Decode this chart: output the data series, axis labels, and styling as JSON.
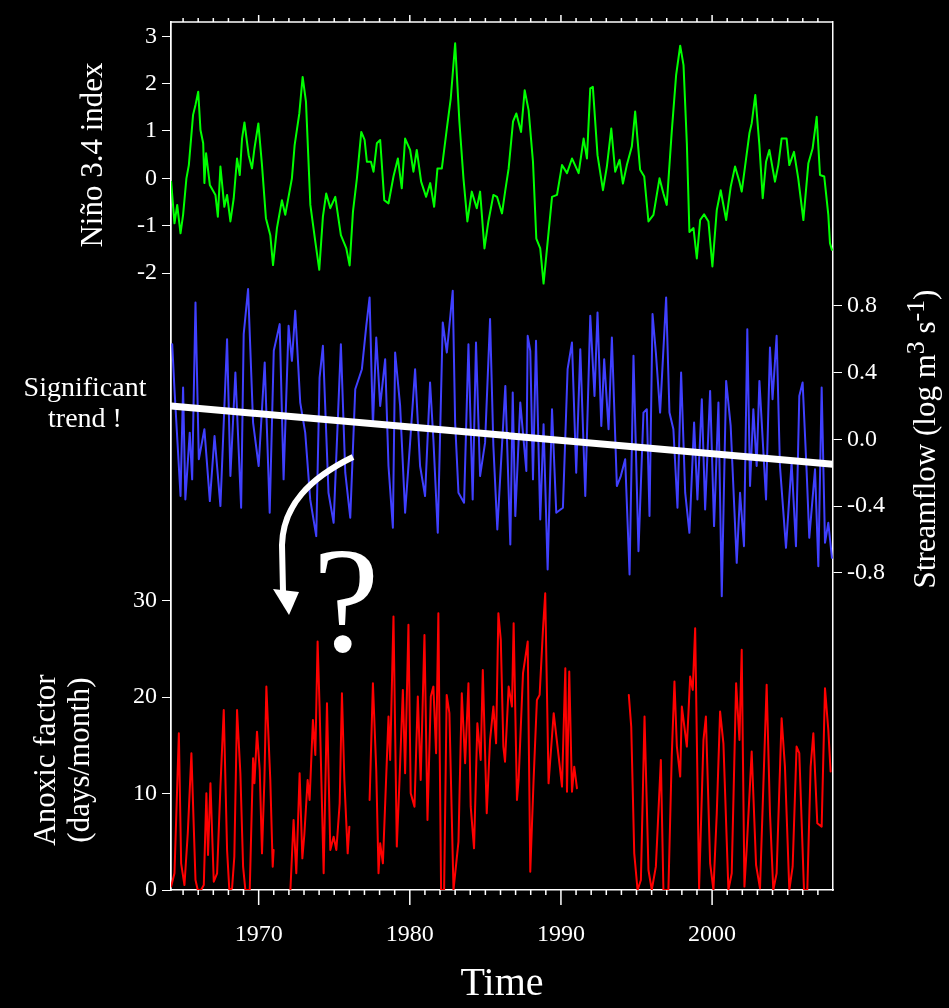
{
  "chart_data": {
    "type": "line",
    "xlabel": "Time",
    "ylabel": "Niño 3.4 index",
    "y2label": "Streamflow (log m$^{3}$ s$^{-1}$)",
    "y3label": "Anoxic factor (days/month)",
    "marker": "none",
    "xlim": [
      1964.2,
      2008.0
    ],
    "xticks": [
      {
        "value": 1965,
        "label": null
      },
      {
        "value": 1966,
        "label": null
      },
      {
        "value": 1967,
        "label": null
      },
      {
        "value": 1968,
        "label": null
      },
      {
        "value": 1969,
        "label": null
      },
      1970,
      {
        "value": 1971,
        "label": null
      },
      {
        "value": 1972,
        "label": null
      },
      {
        "value": 1973,
        "label": null
      },
      {
        "value": 1974,
        "label": null
      },
      {
        "value": 1975,
        "label": null
      },
      {
        "value": 1976,
        "label": null
      },
      {
        "value": 1977,
        "label": null
      },
      {
        "value": 1978,
        "label": null
      },
      {
        "value": 1979,
        "label": null
      },
      1980,
      {
        "value": 1981,
        "label": null
      },
      {
        "value": 1982,
        "label": null
      },
      {
        "value": 1983,
        "label": null
      },
      {
        "value": 1984,
        "label": null
      },
      {
        "value": 1985,
        "label": null
      },
      {
        "value": 1986,
        "label": null
      },
      {
        "value": 1987,
        "label": null
      },
      {
        "value": 1988,
        "label": null
      },
      {
        "value": 1989,
        "label": null
      },
      1990,
      {
        "value": 1991,
        "label": null
      },
      {
        "value": 1992,
        "label": null
      },
      {
        "value": 1993,
        "label": null
      },
      {
        "value": 1994,
        "label": null
      },
      {
        "value": 1995,
        "label": null
      },
      {
        "value": 1996,
        "label": null
      },
      {
        "value": 1997,
        "label": null
      },
      {
        "value": 1998,
        "label": null
      },
      {
        "value": 1999,
        "label": null
      },
      2000,
      {
        "value": 2001,
        "label": null
      },
      {
        "value": 2002,
        "label": null
      },
      {
        "value": 2003,
        "label": null
      },
      {
        "value": 2004,
        "label": null
      },
      {
        "value": 2005,
        "label": null
      },
      {
        "value": 2006,
        "label": null
      },
      {
        "value": 2007,
        "label": null
      }
    ],
    "ylim": [
      -15.02,
      3.3
    ],
    "yticks": [
      -2,
      -1,
      0,
      1,
      2,
      3
    ],
    "y2lim": [
      -2.7,
      2.5
    ],
    "y2ticks": [
      -0.8,
      -0.4,
      {
        "value": 0,
        "label": "0.0"
      },
      0.4,
      0.8
    ],
    "y3lim": [
      0,
      90
    ],
    "y3ticks": [
      0,
      10,
      20,
      30
    ],
    "annotations": [
      "Significant trend !",
      "?"
    ],
    "series": [
      {
        "color": "#00ff00",
        "x": [
          1964.21,
          1964.43,
          1964.61,
          1964.83,
          1965.0,
          1965.22,
          1965.38,
          1965.66,
          1965.82,
          1966.0,
          1966.15,
          1966.33,
          1966.41,
          1966.52,
          1966.77,
          1967.14,
          1967.3,
          1967.47,
          1967.73,
          1967.91,
          1968.13,
          1968.35,
          1968.57,
          1968.75,
          1968.9,
          1969.06,
          1969.34,
          1969.56,
          1969.72,
          1969.98,
          1970.22,
          1970.48,
          1970.77,
          1970.95,
          1971.21,
          1971.54,
          1971.76,
          1972.2,
          1972.38,
          1972.69,
          1972.91,
          1973.13,
          1973.42,
          1973.75,
          1974.01,
          1974.25,
          1974.47,
          1974.74,
          1975.07,
          1975.44,
          1975.8,
          1976.02,
          1976.24,
          1976.5,
          1976.79,
          1977.01,
          1977.16,
          1977.43,
          1977.6,
          1977.82,
          1978.04,
          1978.31,
          1978.59,
          1978.92,
          1979.21,
          1979.47,
          1979.69,
          1980.02,
          1980.24,
          1980.46,
          1980.75,
          1981.08,
          1981.35,
          1981.61,
          1981.83,
          1982.12,
          1982.45,
          1982.71,
          1983.0,
          1983.28,
          1983.55,
          1983.81,
          1984.1,
          1984.43,
          1984.65,
          1984.94,
          1985.2,
          1985.53,
          1985.77,
          1986.1,
          1986.32,
          1986.54,
          1986.83,
          1987.05,
          1987.36,
          1987.6,
          1987.86,
          1988.15,
          1988.37,
          1988.63,
          1988.85,
          1989.12,
          1989.41,
          1989.74,
          1990.07,
          1990.4,
          1990.73,
          1991.17,
          1991.5,
          1991.72,
          1991.94,
          1992.11,
          1992.42,
          1992.78,
          1993.04,
          1993.33,
          1993.59,
          1993.88,
          1994.1,
          1994.36,
          1994.69,
          1994.91,
          1995.24,
          1995.51,
          1995.79,
          1996.12,
          1996.52,
          1996.78,
          1997.0,
          1997.33,
          1997.62,
          1997.89,
          1998.11,
          1998.33,
          1998.5,
          1998.77,
          1998.99,
          1999.21,
          1999.47,
          1999.76,
          2000.02,
          2000.31,
          2000.57,
          2000.93,
          2001.23,
          2001.52,
          2001.81,
          2001.96,
          2002.18,
          2002.47,
          2002.62,
          2002.86,
          2003.13,
          2003.35,
          2003.57,
          2003.79,
          2004.16,
          2004.38,
          2004.6,
          2004.93,
          2005.11,
          2005.42,
          2005.7,
          2006.04,
          2006.37,
          2006.65,
          2006.92,
          2007.14,
          2007.42,
          2007.69,
          2007.8,
          2007.93
        ],
        "values": [
          -0.07,
          -0.95,
          -0.56,
          -1.16,
          -0.77,
          0.0,
          0.28,
          1.34,
          1.55,
          1.83,
          1.02,
          0.74,
          -0.1,
          0.53,
          -0.14,
          -0.35,
          -0.81,
          0.25,
          -0.6,
          -0.35,
          -0.91,
          -0.42,
          0.42,
          0.07,
          0.84,
          1.18,
          0.49,
          0.21,
          0.63,
          1.16,
          0.28,
          -0.84,
          -1.2,
          -1.83,
          -1.05,
          -0.46,
          -0.77,
          0.0,
          0.7,
          1.37,
          2.14,
          1.62,
          -0.56,
          -1.34,
          -1.93,
          -0.81,
          -0.32,
          -0.63,
          -0.39,
          -1.2,
          -1.48,
          -1.84,
          -0.7,
          0.0,
          0.98,
          0.81,
          0.35,
          0.35,
          0.14,
          0.74,
          0.81,
          -0.46,
          -0.53,
          0.04,
          0.42,
          -0.21,
          0.84,
          0.6,
          0.14,
          0.6,
          -0.07,
          -0.39,
          -0.1,
          -0.6,
          0.21,
          0.21,
          1.05,
          1.69,
          2.85,
          1.2,
          0.0,
          -0.91,
          -0.28,
          -0.63,
          -0.28,
          -1.48,
          -0.91,
          -0.35,
          -0.39,
          -0.74,
          -0.25,
          0.21,
          1.2,
          1.37,
          0.98,
          1.86,
          1.44,
          0.35,
          -1.27,
          -1.48,
          -2.22,
          -1.34,
          -0.39,
          -0.35,
          0.28,
          0.11,
          0.42,
          0.11,
          0.84,
          0.42,
          1.9,
          1.93,
          0.49,
          -0.25,
          0.25,
          1.05,
          0.14,
          0.39,
          -0.11,
          0.28,
          0.67,
          1.41,
          0.18,
          0.04,
          -0.91,
          -0.77,
          0.0,
          -0.32,
          -0.56,
          0.98,
          2.18,
          2.8,
          2.39,
          0.74,
          -1.13,
          -1.05,
          -1.69,
          -0.88,
          -0.76,
          -0.91,
          -1.86,
          -0.67,
          -0.25,
          -0.88,
          -0.18,
          0.25,
          -0.07,
          -0.28,
          0.25,
          0.95,
          1.16,
          1.76,
          0.7,
          -0.42,
          0.35,
          0.6,
          -0.07,
          0.28,
          0.84,
          0.84,
          0.28,
          0.56,
          0.0,
          -0.88,
          0.32,
          0.63,
          1.3,
          0.07,
          0.04,
          -0.77,
          -1.37,
          -1.51
        ]
      },
      {
        "color": "#4040ff",
        "axis": "y2",
        "x": [
          1964.28,
          1964.43,
          1964.83,
          1965.0,
          1965.15,
          1965.44,
          1965.6,
          1965.82,
          1966.04,
          1966.41,
          1966.77,
          1967.08,
          1967.47,
          1967.91,
          1968.13,
          1968.46,
          1968.84,
          1969.01,
          1969.3,
          1969.63,
          1970.0,
          1970.4,
          1970.73,
          1971.0,
          1971.39,
          1971.65,
          1971.98,
          1972.2,
          1972.42,
          1972.75,
          1973.08,
          1973.41,
          1973.81,
          1974.03,
          1974.25,
          1974.62,
          1974.96,
          1975.44,
          1975.73,
          1976.06,
          1976.39,
          1976.83,
          1977.12,
          1977.34,
          1977.56,
          1977.78,
          1978.04,
          1978.37,
          1978.59,
          1978.88,
          1979.03,
          1979.36,
          1979.69,
          1980.02,
          1980.35,
          1980.68,
          1981.01,
          1981.34,
          1981.56,
          1981.85,
          1982.18,
          1982.45,
          1982.84,
          1983.0,
          1983.22,
          1983.59,
          1983.88,
          1984.16,
          1984.38,
          1984.65,
          1984.98,
          1985.31,
          1985.53,
          1985.79,
          1986.32,
          1986.65,
          1986.81,
          1986.98,
          1987.31,
          1987.71,
          1987.8,
          1987.97,
          1988.15,
          1988.35,
          1988.63,
          1988.85,
          1989.12,
          1989.41,
          1989.69,
          1990.13,
          1990.44,
          1990.73,
          1991.01,
          1991.28,
          1991.61,
          1991.94,
          1992.22,
          1992.42,
          1992.67,
          1992.86,
          1993.15,
          1993.37,
          1993.7,
          1993.96,
          1994.25,
          1994.54,
          1994.8,
          1995.13,
          1995.46,
          1995.68,
          1995.86,
          1996.06,
          1996.28,
          1996.56,
          1996.96,
          1997.18,
          1997.44,
          1997.71,
          1997.95,
          1998.22,
          1998.5,
          1998.81,
          1999.03,
          1999.32,
          1999.54,
          1999.87,
          2000.13,
          2000.42,
          2000.64,
          2000.93,
          2001.23,
          2001.63,
          2001.85,
          2002.11,
          2002.33,
          2002.51,
          2002.73,
          2002.95,
          2003.13,
          2003.57,
          2003.83,
          2004.0,
          2004.27,
          2004.49,
          2004.89,
          2005.26,
          2005.55,
          2005.77,
          2005.99,
          2006.26,
          2006.43,
          2006.81,
          2007.03,
          2007.25,
          2007.47,
          2007.69,
          2007.93
        ],
        "values": [
          0.57,
          0.3,
          -0.34,
          0.31,
          -0.36,
          0.04,
          -0.24,
          0.82,
          -0.12,
          0.06,
          -0.37,
          0.02,
          -0.4,
          0.6,
          -0.22,
          0.4,
          -0.41,
          0.63,
          0.9,
          0.1,
          -0.16,
          0.46,
          -0.44,
          0.53,
          0.69,
          -0.24,
          0.68,
          0.47,
          0.77,
          0.22,
          0.04,
          -0.36,
          -0.58,
          0.37,
          0.56,
          -0.32,
          -0.5,
          0.57,
          -0.2,
          -0.47,
          0.3,
          0.42,
          0.68,
          0.85,
          0.08,
          0.61,
          0.2,
          0.48,
          -0.16,
          -0.53,
          0.52,
          0.2,
          -0.44,
          -0.02,
          0.42,
          -0.16,
          -0.34,
          0.34,
          0.0,
          -0.56,
          0.7,
          0.52,
          0.89,
          0.1,
          -0.32,
          -0.38,
          0.57,
          -0.36,
          0.58,
          -0.22,
          -0.02,
          0.72,
          -0.04,
          -0.54,
          0.32,
          -0.63,
          0.28,
          -0.46,
          0.22,
          -0.19,
          0.62,
          0.53,
          -0.24,
          0.59,
          -0.48,
          0.09,
          -0.78,
          0.18,
          -0.44,
          -0.41,
          0.42,
          0.58,
          -0.2,
          0.54,
          -0.34,
          0.74,
          0.26,
          0.76,
          0.08,
          0.48,
          0.06,
          0.61,
          -0.28,
          -0.22,
          -0.12,
          -0.81,
          0.5,
          -0.67,
          0.16,
          0.18,
          -0.46,
          0.75,
          0.52,
          0.16,
          0.85,
          0.16,
          0.06,
          -0.41,
          0.4,
          -0.32,
          -0.56,
          0.1,
          -0.36,
          0.24,
          -0.42,
          0.29,
          -0.52,
          0.22,
          -0.94,
          0.35,
          0.08,
          -0.74,
          -0.32,
          -0.64,
          0.66,
          -0.28,
          0.18,
          -0.16,
          0.35,
          -0.36,
          0.55,
          0.24,
          0.62,
          -0.16,
          -0.65,
          -0.14,
          -0.64,
          0.26,
          0.34,
          -0.2,
          -0.59,
          -0.18,
          -0.76,
          0.31,
          -0.62,
          -0.5,
          -0.71
        ]
      },
      {
        "color": "#ffffff",
        "axis": "y2",
        "x": [
          1964.2,
          2008.0
        ],
        "values": [
          0.2,
          -0.15
        ]
      },
      {
        "color": "#ff0000",
        "axis": "y3",
        "x": [
          1964.21,
          1964.43,
          1964.72,
          1964.87,
          1965.09,
          1965.31,
          1965.55,
          1965.82,
          1965.97,
          1966.19,
          1966.37,
          1966.54,
          1966.65,
          1966.81,
          1967.03,
          1967.25,
          1967.47,
          1967.69,
          1967.91,
          1968.06,
          1968.24,
          1968.39,
          1968.57,
          1968.79,
          1968.97,
          1969.12,
          1969.41,
          1969.63,
          1969.72,
          1969.89,
          1970.07,
          1970.22,
          1970.38,
          1970.51,
          1970.77,
          1970.93,
          1970.99,
          1971.5,
          1972.1,
          1972.31,
          1972.49,
          1972.71,
          1972.89,
          1973.02,
          1973.24,
          1973.37,
          1973.59,
          1973.75,
          1973.9,
          1974.03,
          1974.3,
          1974.52,
          1974.74,
          1974.96,
          1975.14,
          1975.36,
          1975.51,
          1975.67,
          1975.89,
          1976.0,
          1976.6,
          1977.34,
          1977.56,
          1977.78,
          1977.93,
          1978.04,
          1978.22,
          1978.59,
          1978.7,
          1978.92,
          1979.14,
          1979.32,
          1979.54,
          1979.69,
          1979.91,
          1980.06,
          1980.31,
          1980.53,
          1980.72,
          1980.97,
          1981.17,
          1981.39,
          1981.56,
          1981.74,
          1981.89,
          1982.07,
          1982.27,
          1982.44,
          1982.62,
          1982.89,
          1983.22,
          1983.44,
          1983.66,
          1983.88,
          1984.03,
          1984.25,
          1984.47,
          1984.69,
          1984.83,
          1985.09,
          1985.31,
          1985.53,
          1985.71,
          1985.86,
          1986.02,
          1986.19,
          1986.3,
          1986.54,
          1986.76,
          1986.87,
          1987.09,
          1987.2,
          1987.49,
          1987.8,
          1987.97,
          1988.19,
          1988.41,
          1988.59,
          1988.81,
          1988.96,
          1989.18,
          1989.52,
          1989.85,
          1990.07,
          1990.29,
          1990.4,
          1990.55,
          1990.73,
          1990.88,
          1991.06,
          1993.0,
          1994.49,
          1994.65,
          1994.85,
          1995.07,
          1995.29,
          1995.53,
          1995.79,
          1996.01,
          1996.28,
          1996.61,
          1996.78,
          1997.11,
          1997.33,
          1997.51,
          1997.67,
          1997.89,
          1998.0,
          1998.33,
          1998.55,
          1998.72,
          1998.88,
          1999.14,
          1999.43,
          1999.59,
          1999.87,
          2000.09,
          2000.31,
          2000.53,
          2000.75,
          2001.08,
          2001.3,
          2001.59,
          2001.81,
          2001.96,
          2002.14,
          2002.29,
          2002.62,
          2002.91,
          2003.17,
          2003.39,
          2003.61,
          2003.83,
          2004.05,
          2004.27,
          2004.6,
          2004.82,
          2005.11,
          2005.33,
          2005.59,
          2005.77,
          2006.08,
          2006.3,
          2006.52,
          2006.7,
          2006.96,
          2007.25,
          2007.47,
          2007.69,
          2007.84
        ],
        "values": [
          0.35,
          1.73,
          16.25,
          2.77,
          0.52,
          5.88,
          14.18,
          1.04,
          0,
          0,
          0.52,
          10.03,
          3.63,
          11.07,
          0.86,
          1.73,
          10.72,
          18.67,
          4.15,
          0,
          0.17,
          3.46,
          18.67,
          12.1,
          2.42,
          0,
          0,
          13.66,
          11.07,
          16.42,
          12.45,
          3.8,
          11.41,
          21.09,
          11.41,
          2.42,
          4.15,
          null,
          0,
          7.26,
          1.73,
          12.1,
          3.28,
          5.7,
          11.41,
          9.34,
          17.63,
          14.0,
          25.76,
          19.02,
          1.73,
          19.36,
          4.15,
          5.53,
          4.15,
          8.99,
          20.4,
          11.41,
          3.8,
          6.57,
          null,
          9.34,
          21.44,
          12.45,
          1.73,
          4.84,
          2.77,
          17.98,
          13.49,
          28.35,
          4.5,
          11.41,
          20.75,
          12.1,
          27.49,
          10.03,
          8.64,
          20.06,
          11.41,
          26.45,
          7.26,
          20.06,
          21.09,
          14.18,
          28.7,
          0,
          0,
          20.23,
          18.33,
          0,
          5.01,
          20.4,
          13.14,
          21.44,
          8.64,
          4.32,
          17.29,
          13.49,
          22.82,
          7.95,
          15.56,
          19.02,
          15.21,
          28.7,
          25.93,
          14.87,
          13.31,
          21.09,
          19.02,
          27.66,
          9.34,
          11.41,
          22.48,
          25.76,
          1.9,
          11.41,
          19.71,
          20.23,
          26.97,
          30.77,
          11.06,
          18.33,
          13.83,
          10.72,
          22.99,
          10.2,
          22.65,
          10.2,
          12.79,
          10.55,
          null,
          20.23,
          16.94,
          3.8,
          0,
          1.04,
          17.98,
          2.07,
          0,
          2.42,
          13.49,
          0,
          0,
          13.83,
          21.61,
          14.87,
          11.76,
          19.02,
          14.87,
          22.13,
          20.75,
          27.14,
          0.17,
          15.56,
          17.98,
          2.77,
          0,
          7.95,
          18.5,
          15.21,
          0,
          1.73,
          21.44,
          15.56,
          24.9,
          0.35,
          4.32,
          14.35,
          2.59,
          0.17,
          10.72,
          21.27,
          7.95,
          0,
          1.73,
          17.81,
          12.79,
          0,
          2.42,
          14.87,
          14.18,
          0,
          0,
          12.79,
          16.25,
          6.92,
          6.57,
          20.92,
          16.6,
          12.28
        ]
      }
    ]
  }
}
